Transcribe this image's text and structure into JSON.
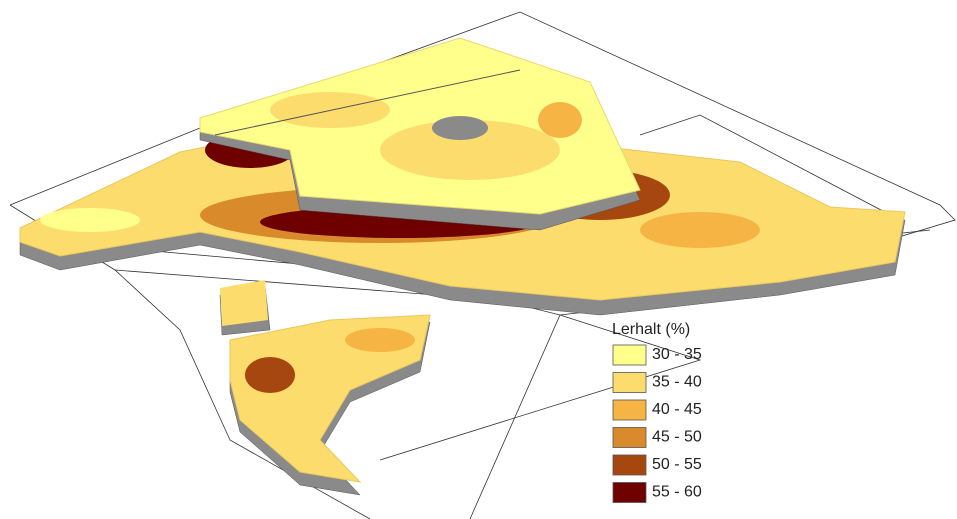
{
  "legend": {
    "title": "Lerhalt (%)",
    "items": [
      {
        "label": "30 - 35",
        "color": "#ffff8c"
      },
      {
        "label": "35 - 40",
        "color": "#fddc6e"
      },
      {
        "label": "40 - 45",
        "color": "#f6b445"
      },
      {
        "label": "45 - 50",
        "color": "#d98a2b"
      },
      {
        "label": "50 - 55",
        "color": "#a6470f"
      },
      {
        "label": "55 - 60",
        "color": "#6e0000"
      }
    ]
  }
}
